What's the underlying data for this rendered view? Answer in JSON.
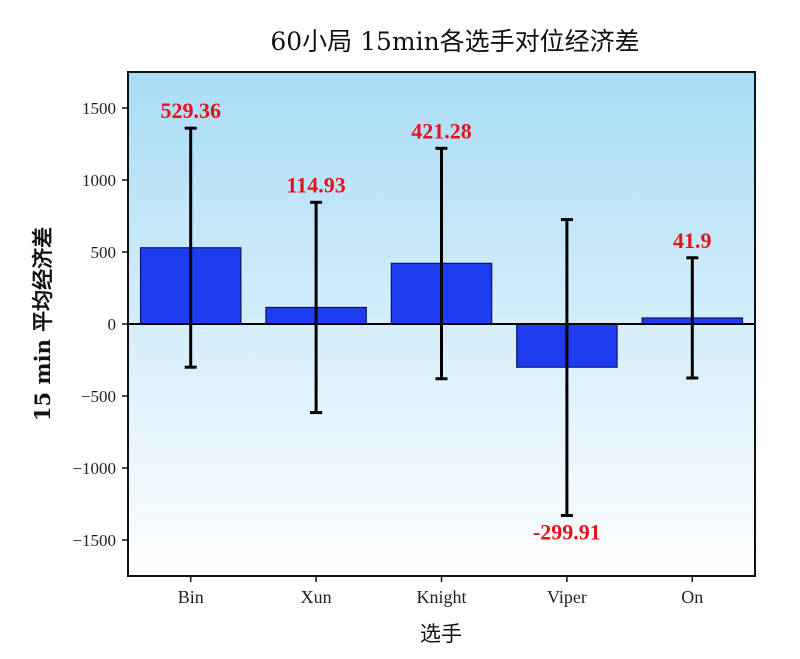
{
  "chart_data": {
    "type": "bar",
    "title": "60小局 15min各选手对位经济差",
    "xlabel": "选手",
    "ylabel": "15 min 平均经济差",
    "categories": [
      "Bin",
      "Xun",
      "Knight",
      "Viper",
      "On"
    ],
    "values": [
      529.36,
      114.93,
      421.28,
      -299.91,
      41.9
    ],
    "data_labels": [
      "529.36",
      "114.93",
      "421.28",
      "-299.91",
      "41.9"
    ],
    "error_bars": [
      {
        "low": -300,
        "high": 1360
      },
      {
        "low": -615,
        "high": 845
      },
      {
        "low": -380,
        "high": 1220
      },
      {
        "low": -1330,
        "high": 725
      },
      {
        "low": -375,
        "high": 460
      }
    ],
    "ylim": [
      -1750,
      1750
    ],
    "yticks": [
      -1500,
      -1000,
      -500,
      0,
      500,
      1000,
      1500
    ],
    "ytick_labels": [
      "−1500",
      "−1000",
      "−500",
      "0",
      "500",
      "1000",
      "1500"
    ],
    "grid": false,
    "legend": "none",
    "colors": {
      "bar_fill": "#1f3df0",
      "bar_edge": "#0a1560",
      "label_color": "#e8101a",
      "background_top": "#a9dcf5",
      "background_bottom": "#ffffff"
    }
  }
}
